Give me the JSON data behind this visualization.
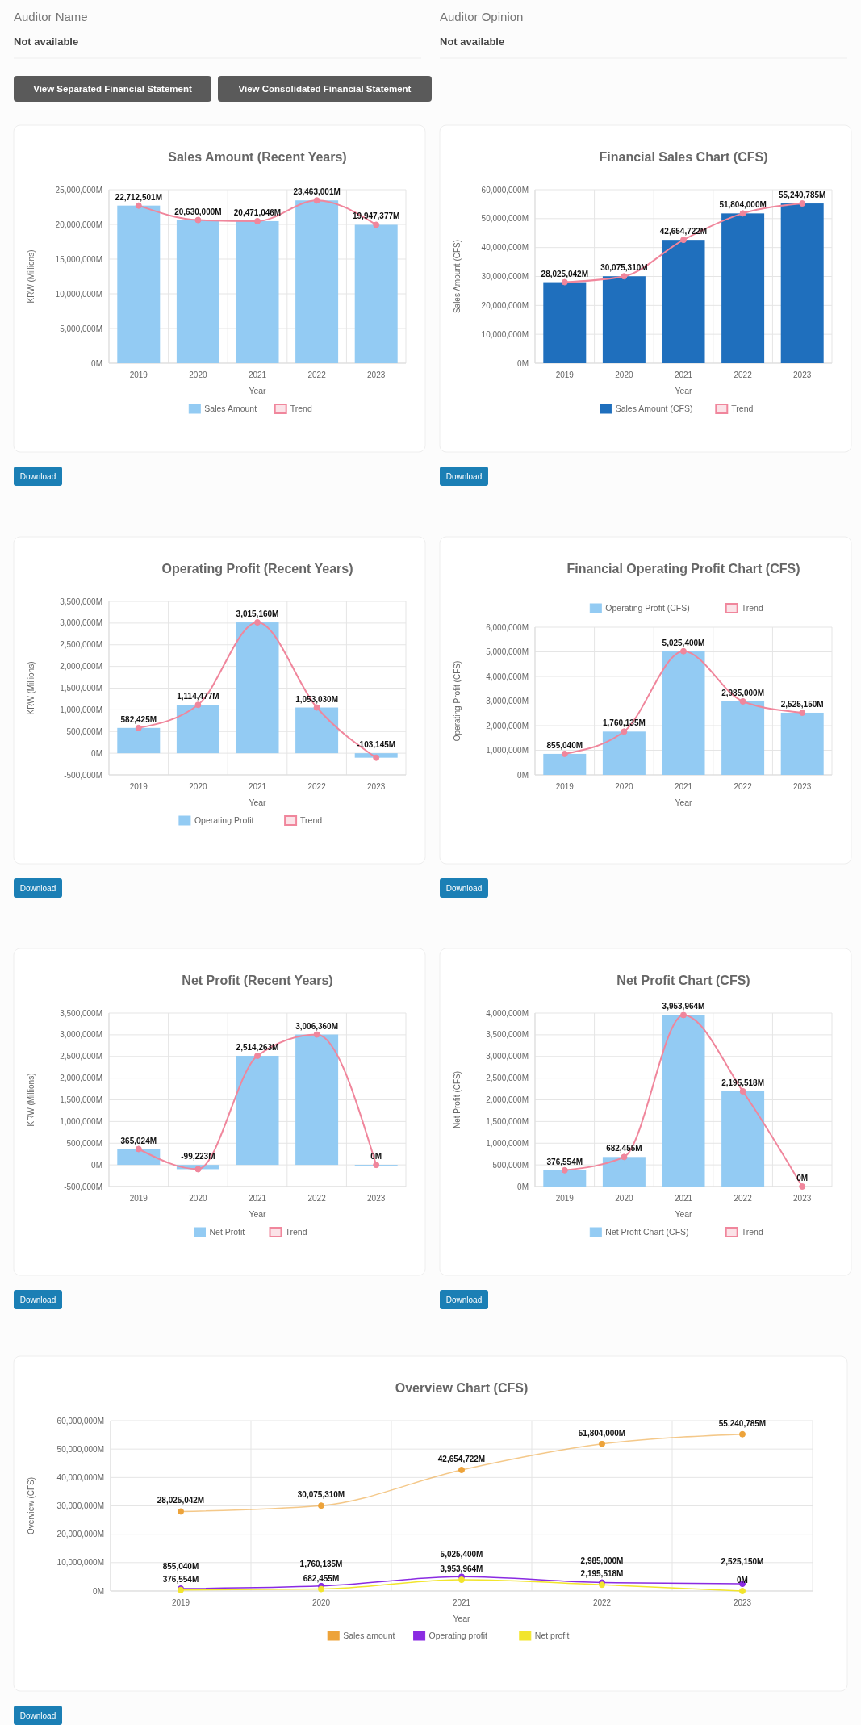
{
  "chart_data": [
    {
      "type": "other",
      "annotations": [
        "Auditor Name",
        "Not available",
        "Auditor Opinion",
        "Not available",
        "View Separated Financial Statement",
        "View Consolidated Financial Statement"
      ]
    },
    {
      "type": "bar",
      "title": "Sales Amount (Recent Years)",
      "xlabel": "Year",
      "ylabel": "KRW (Millions)",
      "categories": [
        "2019",
        "2020",
        "2021",
        "2022",
        "2023"
      ],
      "series": [
        {
          "name": "Sales Amount",
          "type": "bar",
          "color": "#93cbf3",
          "values": [
            22712501,
            20630000,
            20471046,
            23463001,
            19947377
          ],
          "value_labels": [
            "22,712,501M",
            "20,630,000M",
            "20,471,046M",
            "23,463,001M",
            "19,947,377M"
          ]
        },
        {
          "name": "Trend",
          "type": "line",
          "color": "#f0869c",
          "values": [
            22712501,
            20630000,
            20471046,
            23463001,
            19947377
          ]
        }
      ],
      "ylim": [
        0,
        25000000
      ],
      "yticks": [
        {
          "value": 0,
          "label": "0M"
        },
        {
          "value": 5000000,
          "label": "5,000,000M"
        },
        {
          "value": 10000000,
          "label": "10,000,000M"
        },
        {
          "value": 15000000,
          "label": "15,000,000M"
        },
        {
          "value": 20000000,
          "label": "20,000,000M"
        },
        {
          "value": 25000000,
          "label": "25,000,000M"
        }
      ],
      "grid": true,
      "legend": "bottom",
      "marker": "circle",
      "annotations": [
        "Download"
      ]
    },
    {
      "type": "bar",
      "title": "Financial Sales Chart (CFS)",
      "xlabel": "Year",
      "ylabel": "Sales Amount (CFS)",
      "categories": [
        "2019",
        "2020",
        "2021",
        "2022",
        "2023"
      ],
      "series": [
        {
          "name": "Sales Amount (CFS)",
          "type": "bar",
          "color": "#1f6fbd",
          "values": [
            28025042,
            30075310,
            42654722,
            51804000,
            55240785
          ],
          "value_labels": [
            "28,025,042M",
            "30,075,310M",
            "42,654,722M",
            "51,804,000M",
            "55,240,785M"
          ]
        },
        {
          "name": "Trend",
          "type": "line",
          "color": "#f0869c",
          "values": [
            28025042,
            30075310,
            42654722,
            51804000,
            55240785
          ]
        }
      ],
      "ylim": [
        0,
        60000000
      ],
      "yticks": [
        {
          "value": 0,
          "label": "0M"
        },
        {
          "value": 10000000,
          "label": "10,000,000M"
        },
        {
          "value": 20000000,
          "label": "20,000,000M"
        },
        {
          "value": 30000000,
          "label": "30,000,000M"
        },
        {
          "value": 40000000,
          "label": "40,000,000M"
        },
        {
          "value": 50000000,
          "label": "50,000,000M"
        },
        {
          "value": 60000000,
          "label": "60,000,000M"
        }
      ],
      "grid": true,
      "legend": "bottom",
      "marker": "circle",
      "annotations": [
        "Download"
      ]
    },
    {
      "type": "bar",
      "title": "Operating Profit (Recent Years)",
      "xlabel": "Year",
      "ylabel": "KRW (Millions)",
      "categories": [
        "2019",
        "2020",
        "2021",
        "2022",
        "2023"
      ],
      "series": [
        {
          "name": "Operating Profit",
          "type": "bar",
          "color": "#93cbf3",
          "values": [
            582425,
            1114477,
            3015160,
            1053030,
            -103145
          ],
          "value_labels": [
            "582,425M",
            "1,114,477M",
            "3,015,160M",
            "1,053,030M",
            "-103,145M"
          ]
        },
        {
          "name": "Trend",
          "type": "line",
          "color": "#f0869c",
          "values": [
            582425,
            1114477,
            3015160,
            1053030,
            -103145
          ]
        }
      ],
      "ylim": [
        -500000,
        3500000
      ],
      "yticks": [
        {
          "value": -500000,
          "label": "-500,000M"
        },
        {
          "value": 0,
          "label": "0M"
        },
        {
          "value": 500000,
          "label": "500,000M"
        },
        {
          "value": 1000000,
          "label": "1,000,000M"
        },
        {
          "value": 1500000,
          "label": "1,500,000M"
        },
        {
          "value": 2000000,
          "label": "2,000,000M"
        },
        {
          "value": 2500000,
          "label": "2,500,000M"
        },
        {
          "value": 3000000,
          "label": "3,000,000M"
        },
        {
          "value": 3500000,
          "label": "3,500,000M"
        }
      ],
      "grid": true,
      "legend": "bottom",
      "marker": "circle",
      "annotations": [
        "Download"
      ]
    },
    {
      "type": "bar",
      "title": "Financial Operating Profit Chart (CFS)",
      "xlabel": "Year",
      "ylabel": "Operating Profit (CFS)",
      "categories": [
        "2019",
        "2020",
        "2021",
        "2022",
        "2023"
      ],
      "series": [
        {
          "name": "Operating Profit (CFS)",
          "type": "bar",
          "color": "#93cbf3",
          "values": [
            855040,
            1760135,
            5025400,
            2985000,
            2525150
          ],
          "value_labels": [
            "855,040M",
            "1,760,135M",
            "5,025,400M",
            "2,985,000M",
            "2,525,150M"
          ]
        },
        {
          "name": "Trend",
          "type": "line",
          "color": "#f0869c",
          "values": [
            855040,
            1760135,
            5025400,
            2985000,
            2525150
          ]
        }
      ],
      "ylim": [
        0,
        6000000
      ],
      "yticks": [
        {
          "value": 0,
          "label": "0M"
        },
        {
          "value": 1000000,
          "label": "1,000,000M"
        },
        {
          "value": 2000000,
          "label": "2,000,000M"
        },
        {
          "value": 3000000,
          "label": "3,000,000M"
        },
        {
          "value": 4000000,
          "label": "4,000,000M"
        },
        {
          "value": 5000000,
          "label": "5,000,000M"
        },
        {
          "value": 6000000,
          "label": "6,000,000M"
        }
      ],
      "grid": true,
      "legend": "top",
      "marker": "circle",
      "annotations": [
        "Download"
      ]
    },
    {
      "type": "bar",
      "title": "Net Profit (Recent Years)",
      "xlabel": "Year",
      "ylabel": "KRW (Millions)",
      "categories": [
        "2019",
        "2020",
        "2021",
        "2022",
        "2023"
      ],
      "series": [
        {
          "name": "Net Profit",
          "type": "bar",
          "color": "#93cbf3",
          "values": [
            365024,
            -99223,
            2514263,
            3006360,
            0
          ],
          "value_labels": [
            "365,024M",
            "-99,223M",
            "2,514,263M",
            "3,006,360M",
            "0M"
          ]
        },
        {
          "name": "Trend",
          "type": "line",
          "color": "#f0869c",
          "values": [
            365024,
            -99223,
            2514263,
            3006360,
            0
          ]
        }
      ],
      "ylim": [
        -500000,
        3500000
      ],
      "yticks": [
        {
          "value": -500000,
          "label": "-500,000M"
        },
        {
          "value": 0,
          "label": "0M"
        },
        {
          "value": 500000,
          "label": "500,000M"
        },
        {
          "value": 1000000,
          "label": "1,000,000M"
        },
        {
          "value": 1500000,
          "label": "1,500,000M"
        },
        {
          "value": 2000000,
          "label": "2,000,000M"
        },
        {
          "value": 2500000,
          "label": "2,500,000M"
        },
        {
          "value": 3000000,
          "label": "3,000,000M"
        },
        {
          "value": 3500000,
          "label": "3,500,000M"
        }
      ],
      "grid": true,
      "legend": "bottom",
      "marker": "circle",
      "annotations": [
        "Download"
      ]
    },
    {
      "type": "bar",
      "title": "Net Profit Chart (CFS)",
      "xlabel": "Year",
      "ylabel": "Net Profit (CFS)",
      "categories": [
        "2019",
        "2020",
        "2021",
        "2022",
        "2023"
      ],
      "series": [
        {
          "name": "Net Profit Chart (CFS)",
          "type": "bar",
          "color": "#93cbf3",
          "values": [
            376554,
            682455,
            3953964,
            2195518,
            0
          ],
          "value_labels": [
            "376,554M",
            "682,455M",
            "3,953,964M",
            "2,195,518M",
            "0M"
          ]
        },
        {
          "name": "Trend",
          "type": "line",
          "color": "#f0869c",
          "values": [
            376554,
            682455,
            3953964,
            2195518,
            0
          ]
        }
      ],
      "ylim": [
        0,
        4000000
      ],
      "yticks": [
        {
          "value": 0,
          "label": "0M"
        },
        {
          "value": 500000,
          "label": "500,000M"
        },
        {
          "value": 1000000,
          "label": "1,000,000M"
        },
        {
          "value": 1500000,
          "label": "1,500,000M"
        },
        {
          "value": 2000000,
          "label": "2,000,000M"
        },
        {
          "value": 2500000,
          "label": "2,500,000M"
        },
        {
          "value": 3000000,
          "label": "3,000,000M"
        },
        {
          "value": 3500000,
          "label": "3,500,000M"
        },
        {
          "value": 4000000,
          "label": "4,000,000M"
        }
      ],
      "grid": true,
      "legend": "bottom",
      "marker": "circle",
      "annotations": [
        "Download"
      ]
    },
    {
      "type": "line",
      "title": "Overview Chart (CFS)",
      "xlabel": "Year",
      "ylabel": "Overview (CFS)",
      "categories": [
        "2019",
        "2020",
        "2021",
        "2022",
        "2023"
      ],
      "series": [
        {
          "name": "Sales amount",
          "color": "#eda33a",
          "values": [
            28025042,
            30075310,
            42654722,
            51804000,
            55240785
          ],
          "value_labels": [
            "28,025,042M",
            "30,075,310M",
            "42,654,722M",
            "51,804,000M",
            "55,240,785M"
          ]
        },
        {
          "name": "Operating profit",
          "color": "#8a2be2",
          "values": [
            855040,
            1760135,
            5025400,
            2985000,
            2525150
          ],
          "value_labels": [
            "855,040M",
            "1,760,135M",
            "5,025,400M",
            "2,985,000M",
            "2,525,150M"
          ]
        },
        {
          "name": "Net profit",
          "color": "#f2e52c",
          "values": [
            376554,
            682455,
            3953964,
            2195518,
            0
          ],
          "value_labels": [
            "376,554M",
            "682,455M",
            "3,953,964M",
            "2,195,518M",
            "0M"
          ]
        }
      ],
      "ylim": [
        0,
        60000000
      ],
      "yticks": [
        {
          "value": 0,
          "label": "0M"
        },
        {
          "value": 10000000,
          "label": "10,000,000M"
        },
        {
          "value": 20000000,
          "label": "20,000,000M"
        },
        {
          "value": 30000000,
          "label": "30,000,000M"
        },
        {
          "value": 40000000,
          "label": "40,000,000M"
        },
        {
          "value": 50000000,
          "label": "50,000,000M"
        },
        {
          "value": 60000000,
          "label": "60,000,000M"
        }
      ],
      "grid": true,
      "legend": "bottom",
      "marker": "circle",
      "annotations": [
        "Download"
      ]
    }
  ]
}
